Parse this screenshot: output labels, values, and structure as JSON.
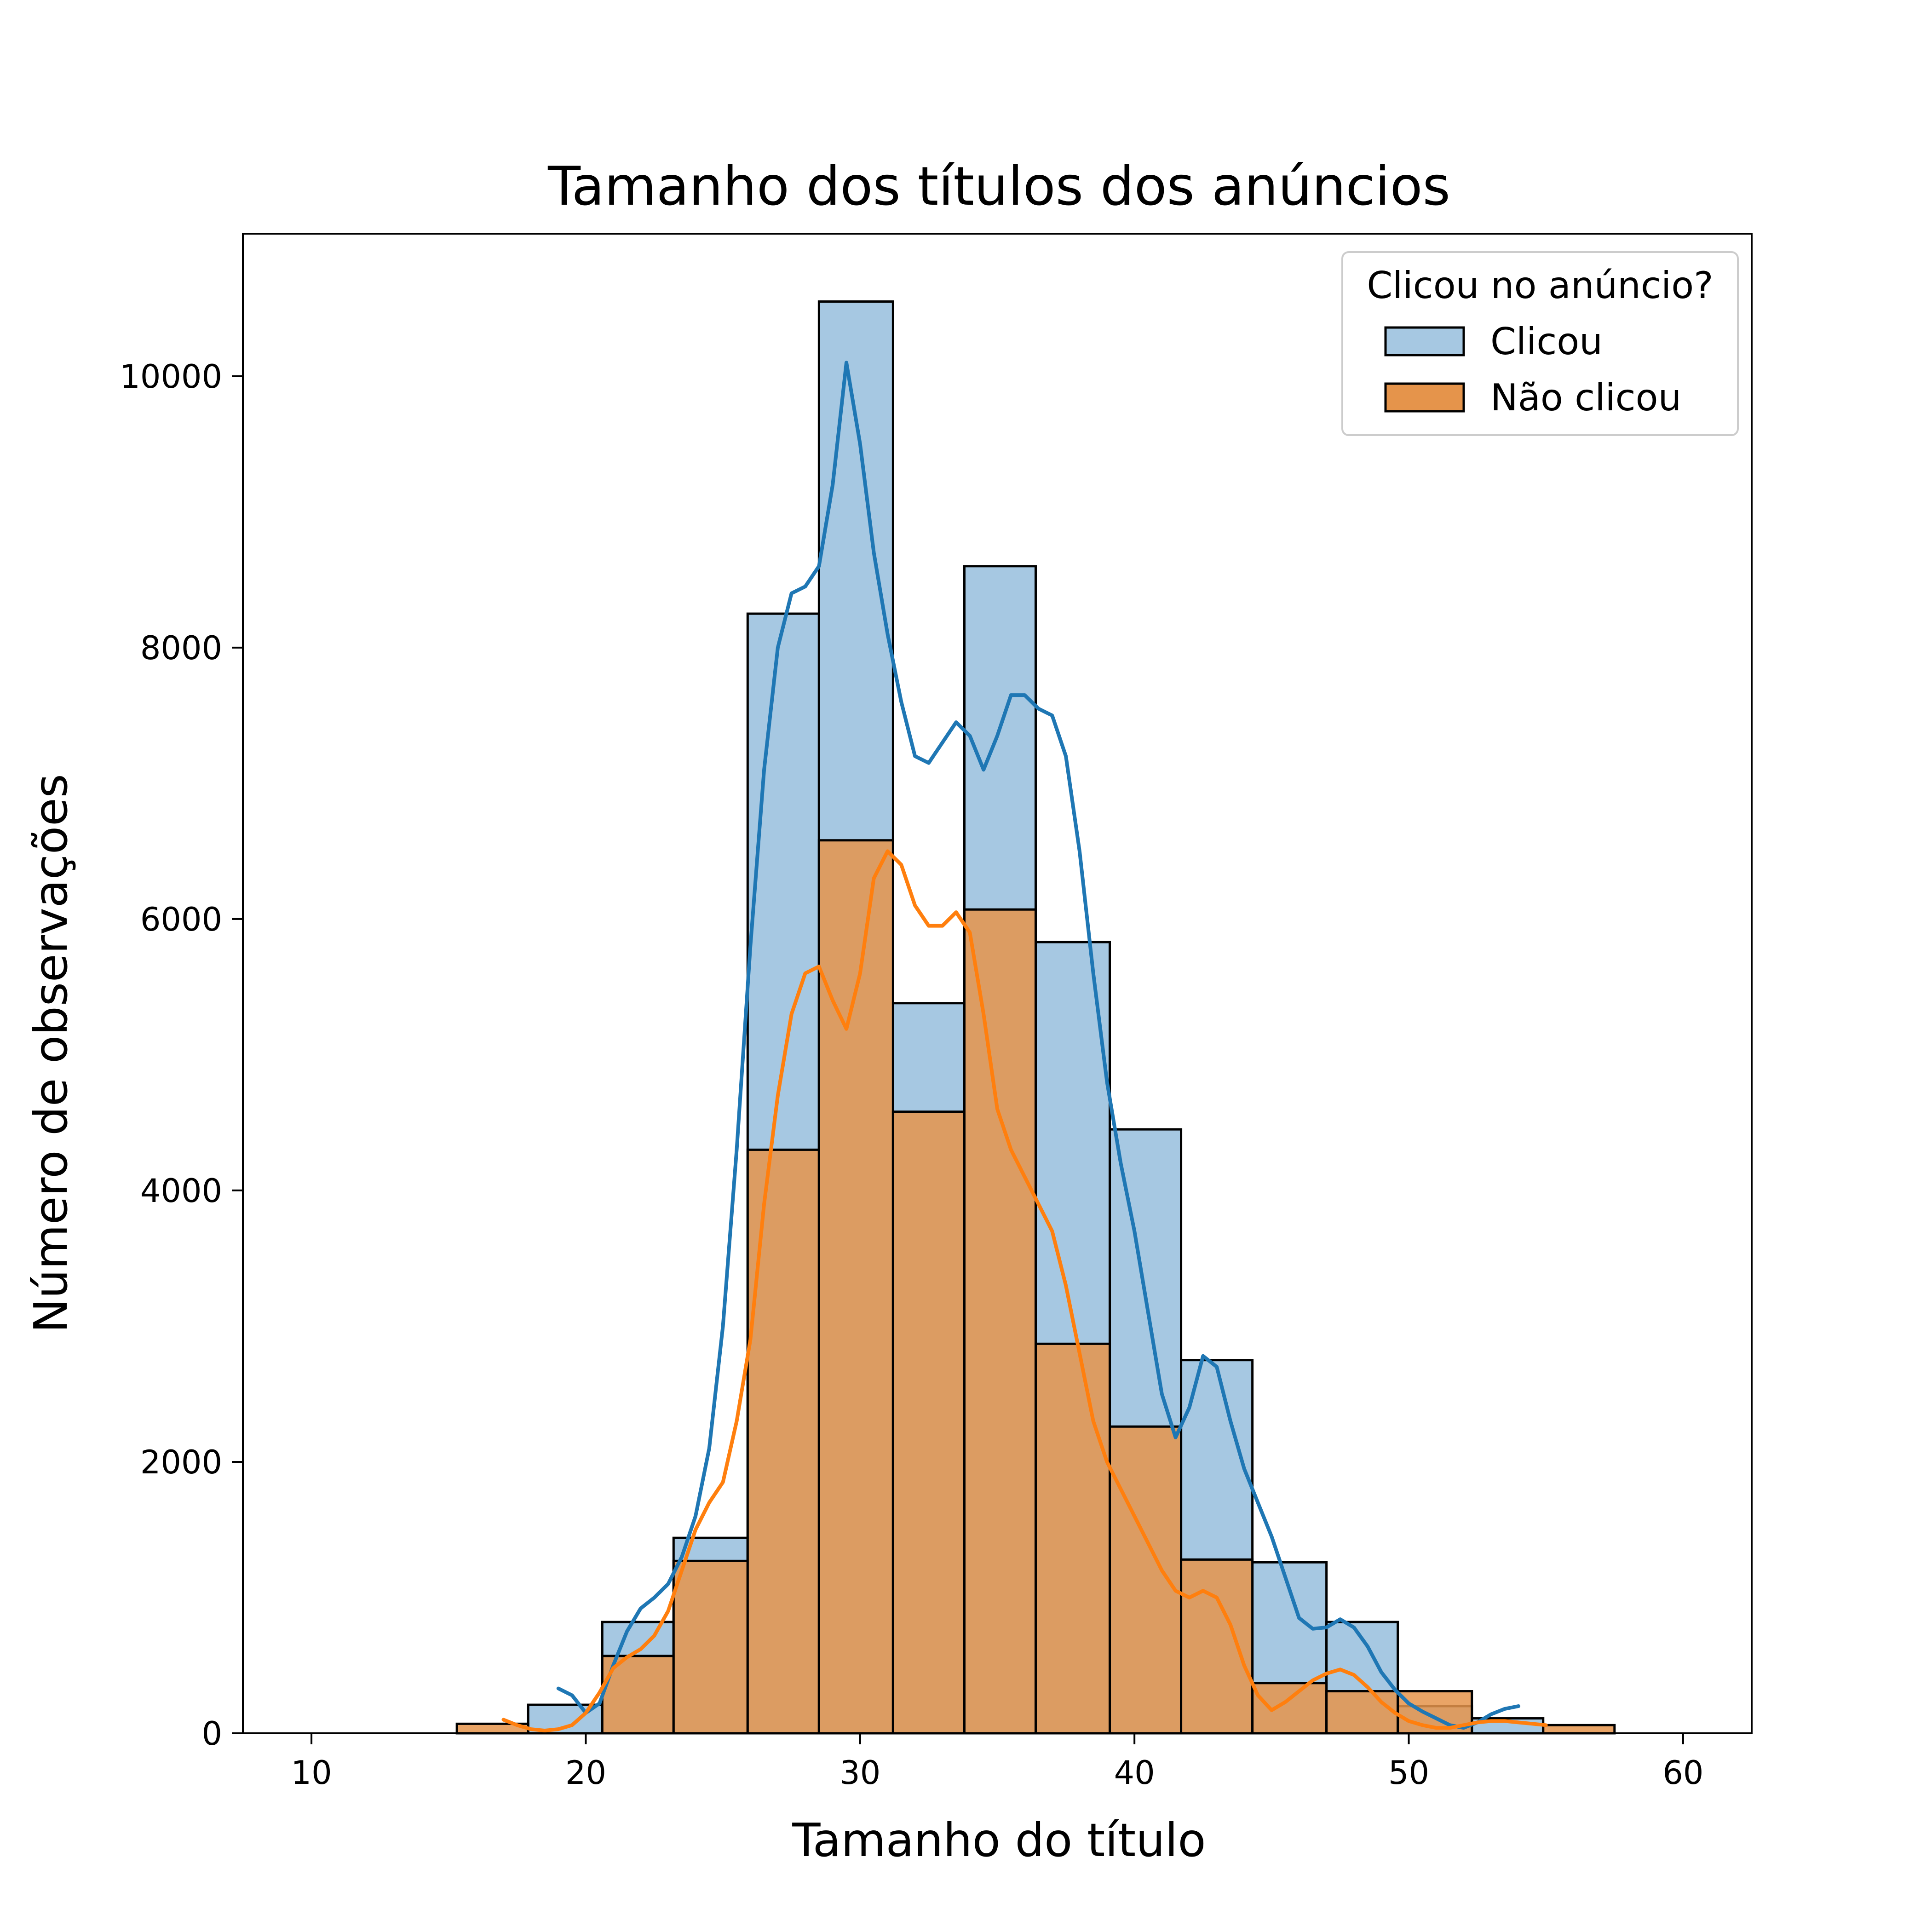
{
  "chart_data": {
    "type": "histogram",
    "title": "Tamanho dos títulos dos anúncios",
    "xlabel": "Tamanho do título",
    "ylabel": "Número de observações",
    "xlim": [
      7.5,
      62.5
    ],
    "ylim": [
      0,
      11050
    ],
    "xticks": [
      10,
      20,
      30,
      40,
      50,
      60
    ],
    "yticks": [
      0,
      2000,
      4000,
      6000,
      8000,
      10000
    ],
    "grid": false,
    "legend": {
      "title": "Clicou no anúncio?",
      "placement": "top-right",
      "entries": [
        "Clicou",
        "Não clicou"
      ]
    },
    "series": [
      {
        "name": "Clicou",
        "color": "#1f77b4",
        "fill": "#a6c8e2",
        "bins": [
          {
            "x0": 20.6,
            "x1": 23.2,
            "count": 820
          },
          {
            "x0": 23.2,
            "x1": 25.9,
            "count": 1440
          },
          {
            "x0": 25.9,
            "x1": 28.5,
            "count": 8250
          },
          {
            "x0": 28.5,
            "x1": 31.2,
            "count": 10550
          },
          {
            "x0": 31.2,
            "x1": 33.8,
            "count": 5380
          },
          {
            "x0": 33.8,
            "x1": 36.4,
            "count": 8600
          },
          {
            "x0": 36.4,
            "x1": 39.1,
            "count": 5830
          },
          {
            "x0": 39.1,
            "x1": 41.7,
            "count": 4450
          },
          {
            "x0": 41.7,
            "x1": 44.3,
            "count": 2750
          },
          {
            "x0": 44.3,
            "x1": 47.0,
            "count": 1260
          },
          {
            "x0": 47.0,
            "x1": 49.6,
            "count": 820
          },
          {
            "x0": 49.6,
            "x1": 52.3,
            "count": 200
          },
          {
            "x0": 52.3,
            "x1": 54.9,
            "count": 110
          },
          {
            "x0": 17.9,
            "x1": 20.6,
            "count": 210
          }
        ],
        "kde": {
          "x": [
            19.0,
            19.5,
            20.0,
            20.5,
            21.0,
            21.5,
            22.0,
            22.5,
            23.0,
            23.5,
            24.0,
            24.5,
            25.0,
            25.5,
            26.0,
            26.5,
            27.0,
            27.5,
            28.0,
            28.5,
            29.0,
            29.5,
            30.0,
            30.5,
            31.0,
            31.5,
            32.0,
            32.5,
            33.0,
            33.5,
            34.0,
            34.5,
            35.0,
            35.5,
            36.0,
            36.5,
            37.0,
            37.5,
            38.0,
            38.5,
            39.0,
            39.5,
            40.0,
            40.5,
            41.0,
            41.5,
            42.0,
            42.5,
            43.0,
            43.5,
            44.0,
            44.5,
            45.0,
            45.5,
            46.0,
            46.5,
            47.0,
            47.5,
            48.0,
            48.5,
            49.0,
            49.5,
            50.0,
            50.5,
            51.0,
            51.5,
            52.0,
            52.5,
            53.0,
            53.5,
            54.0
          ],
          "y": [
            330,
            280,
            150,
            220,
            500,
            750,
            920,
            1000,
            1100,
            1300,
            1600,
            2100,
            3000,
            4300,
            5800,
            7100,
            8000,
            8400,
            8450,
            8600,
            9200,
            10100,
            9500,
            8700,
            8100,
            7600,
            7200,
            7150,
            7300,
            7450,
            7350,
            7100,
            7350,
            7650,
            7650,
            7550,
            7500,
            7200,
            6500,
            5600,
            4800,
            4200,
            3700,
            3100,
            2500,
            2180,
            2400,
            2780,
            2700,
            2300,
            1950,
            1700,
            1450,
            1150,
            850,
            770,
            780,
            840,
            780,
            640,
            450,
            320,
            220,
            160,
            110,
            60,
            40,
            80,
            140,
            180,
            200
          ]
        }
      },
      {
        "name": "Não clicou",
        "color": "#ff7f0e",
        "fill": "#e5944b",
        "bins": [
          {
            "x0": 15.3,
            "x1": 17.9,
            "count": 70
          },
          {
            "x0": 20.6,
            "x1": 23.2,
            "count": 570
          },
          {
            "x0": 23.2,
            "x1": 25.9,
            "count": 1270
          },
          {
            "x0": 25.9,
            "x1": 28.5,
            "count": 4300
          },
          {
            "x0": 28.5,
            "x1": 31.2,
            "count": 6580
          },
          {
            "x0": 31.2,
            "x1": 33.8,
            "count": 4580
          },
          {
            "x0": 33.8,
            "x1": 36.4,
            "count": 6070
          },
          {
            "x0": 36.4,
            "x1": 39.1,
            "count": 2870
          },
          {
            "x0": 39.1,
            "x1": 41.7,
            "count": 2260
          },
          {
            "x0": 41.7,
            "x1": 44.3,
            "count": 1280
          },
          {
            "x0": 44.3,
            "x1": 47.0,
            "count": 370
          },
          {
            "x0": 47.0,
            "x1": 49.6,
            "count": 310
          },
          {
            "x0": 49.6,
            "x1": 52.3,
            "count": 310
          },
          {
            "x0": 54.9,
            "x1": 57.5,
            "count": 60
          }
        ],
        "kde": {
          "x": [
            17.0,
            17.5,
            18.0,
            18.5,
            19.0,
            19.5,
            20.0,
            20.5,
            21.0,
            21.5,
            22.0,
            22.5,
            23.0,
            23.5,
            24.0,
            24.5,
            25.0,
            25.5,
            26.0,
            26.5,
            27.0,
            27.5,
            28.0,
            28.5,
            29.0,
            29.5,
            30.0,
            30.5,
            31.0,
            31.5,
            32.0,
            32.5,
            33.0,
            33.5,
            34.0,
            34.5,
            35.0,
            35.5,
            36.0,
            36.5,
            37.0,
            37.5,
            38.0,
            38.5,
            39.0,
            39.5,
            40.0,
            40.5,
            41.0,
            41.5,
            42.0,
            42.5,
            43.0,
            43.5,
            44.0,
            44.5,
            45.0,
            45.5,
            46.0,
            46.5,
            47.0,
            47.5,
            48.0,
            48.5,
            49.0,
            49.5,
            50.0,
            50.5,
            51.0,
            51.5,
            52.0,
            52.5,
            53.0,
            53.5,
            54.0,
            54.5,
            55.0
          ],
          "y": [
            100,
            60,
            30,
            20,
            30,
            60,
            150,
            300,
            480,
            560,
            620,
            720,
            900,
            1200,
            1500,
            1700,
            1850,
            2300,
            2900,
            3900,
            4700,
            5300,
            5600,
            5650,
            5400,
            5190,
            5600,
            6300,
            6500,
            6400,
            6100,
            5950,
            5950,
            6050,
            5900,
            5300,
            4600,
            4300,
            4100,
            3900,
            3700,
            3300,
            2800,
            2300,
            2000,
            1800,
            1600,
            1400,
            1200,
            1050,
            1000,
            1050,
            1000,
            800,
            500,
            280,
            170,
            230,
            310,
            390,
            440,
            470,
            430,
            340,
            230,
            150,
            90,
            60,
            40,
            40,
            60,
            80,
            90,
            90,
            80,
            70,
            60
          ]
        }
      }
    ]
  }
}
